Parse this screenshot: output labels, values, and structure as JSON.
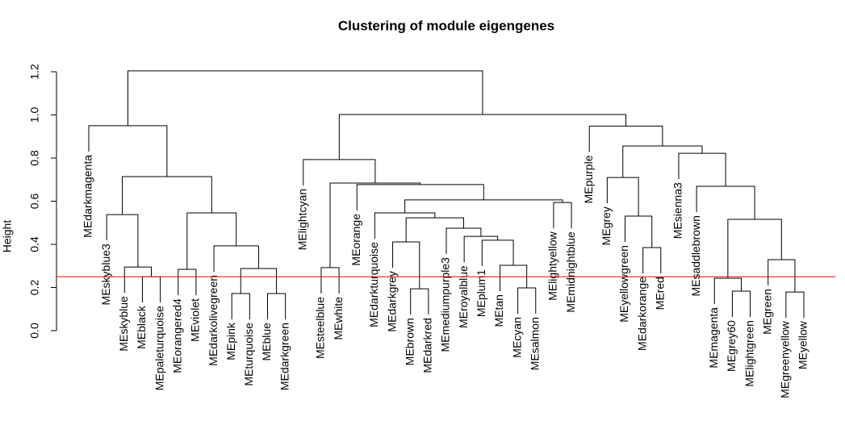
{
  "chart_data": {
    "type": "dendrogram",
    "title": "Clustering of module eigengenes",
    "y_label": "Height",
    "labels": [
      "MEdarkmagenta",
      "MEskyblue3",
      "MEskyblue",
      "MEblack",
      "MEpaleturquoise",
      "MEorangered4",
      "MEviolet",
      "MEdarkolivegreen",
      "MEpink",
      "MEturquoise",
      "MEblue",
      "MEdarkgreen",
      "MElightcyan",
      "MEsteelblue",
      "MEwhite",
      "MEorange",
      "MEdarkturquoise",
      "MEdarkgrey",
      "MEbrown",
      "MEdarkred",
      "MEmediumpurple3",
      "MEroyalblue",
      "MEplum1",
      "MEtan",
      "MEcyan",
      "MEsalmon",
      "MElightyellow",
      "MEmidnightblue",
      "MEpurple",
      "MEgrey",
      "MEyellowgreen",
      "MEdarkorange",
      "MEred",
      "MEsienna3",
      "MEsaddlebrown",
      "MEmagenta",
      "MEgrey60",
      "MElightgreen",
      "MEgreen",
      "MEgreenyellow",
      "MEyellow"
    ],
    "merge": [
      [
        -9,
        -10
      ],
      [
        -11,
        -12
      ],
      [
        -40,
        -41
      ],
      [
        -37,
        -38
      ],
      [
        -19,
        -20
      ],
      [
        -25,
        -26
      ],
      [
        -36,
        4
      ],
      [
        -4,
        -5
      ],
      [
        -6,
        -7
      ],
      [
        1,
        2
      ],
      [
        -14,
        -15
      ],
      [
        -3,
        8
      ],
      [
        -24,
        6
      ],
      [
        -39,
        3
      ],
      [
        -32,
        -33
      ],
      [
        -8,
        10
      ],
      [
        -18,
        5
      ],
      [
        -23,
        13
      ],
      [
        -22,
        18
      ],
      [
        -21,
        19
      ],
      [
        7,
        14
      ],
      [
        17,
        20
      ],
      [
        -31,
        15
      ],
      [
        -2,
        12
      ],
      [
        9,
        16
      ],
      [
        -17,
        22
      ],
      [
        -27,
        -28
      ],
      [
        26,
        27
      ],
      [
        -35,
        21
      ],
      [
        -16,
        28
      ],
      [
        11,
        30
      ],
      [
        -30,
        23
      ],
      [
        24,
        25
      ],
      [
        -13,
        31
      ],
      [
        -34,
        29
      ],
      [
        32,
        35
      ],
      [
        -1,
        33
      ],
      [
        -29,
        36
      ],
      [
        34,
        38
      ],
      [
        37,
        39
      ]
    ],
    "height": [
      0.172,
      0.172,
      0.179,
      0.183,
      0.194,
      0.198,
      0.243,
      0.25,
      0.284,
      0.288,
      0.292,
      0.295,
      0.303,
      0.329,
      0.385,
      0.393,
      0.411,
      0.419,
      0.437,
      0.475,
      0.516,
      0.523,
      0.531,
      0.538,
      0.546,
      0.546,
      0.594,
      0.606,
      0.669,
      0.677,
      0.684,
      0.71,
      0.714,
      0.793,
      0.822,
      0.856,
      0.95,
      0.948,
      1.002,
      1.204
    ],
    "ylim": [
      0,
      1.2
    ],
    "yticks": [
      {
        "value": 0,
        "label": "0.0"
      },
      0.2,
      0.4,
      0.6,
      0.8,
      {
        "value": 1,
        "label": "1.0"
      },
      1.2
    ],
    "cut_height": 0.25,
    "cut_color": "#ff0000",
    "color": "#000000"
  }
}
